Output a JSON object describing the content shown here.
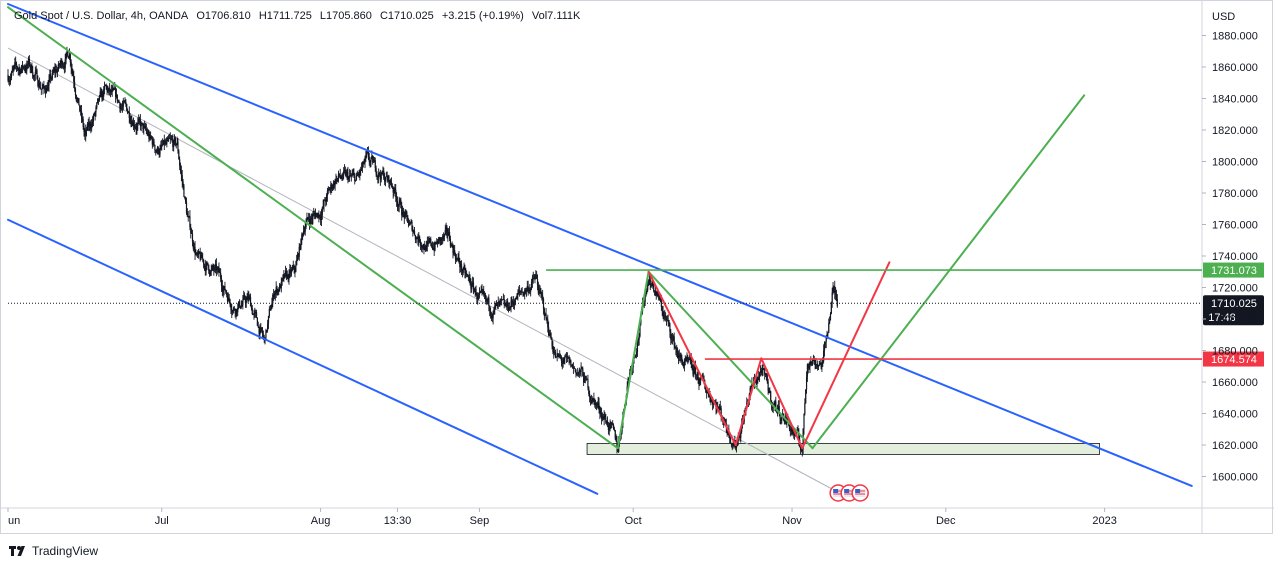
{
  "legend": {
    "symbol": "Gold Spot / U.S. Dollar, 4h, OANDA",
    "open": "O1706.810",
    "high": "H1711.725",
    "low": "L1705.860",
    "close": "C1710.025",
    "change": "+3.215 (+0.19%)",
    "volume": "Vol7.111K"
  },
  "brand": {
    "name": "TradingView"
  },
  "colors": {
    "channel": "#2962ff",
    "triangle": "#4caf50",
    "red": "#f23645",
    "candles": "#131722",
    "zone_fill": "#e3efdc",
    "price_tag": "#131722",
    "axis_text": "#131722"
  },
  "chart_data": {
    "type": "candlestick",
    "currency": "USD",
    "ylim": [
      1580,
      1900
    ],
    "xlim": [
      "2022-06-01",
      "2023-01-20"
    ],
    "y_ticks": [
      "1880.000",
      "1860.000",
      "1840.000",
      "1820.000",
      "1800.000",
      "1780.000",
      "1760.000",
      "1740.000",
      "1720.000",
      "1700.000",
      "1680.000",
      "1660.000",
      "1640.000",
      "1620.000",
      "1600.000"
    ],
    "x_ticks": [
      {
        "label": "un",
        "date": "2022-06-01"
      },
      {
        "label": "Jul",
        "date": "2022-07-01"
      },
      {
        "label": "Aug",
        "date": "2022-08-01"
      },
      {
        "label": "13:30",
        "date": "2022-08-16"
      },
      {
        "label": "Sep",
        "date": "2022-09-01"
      },
      {
        "label": "Oct",
        "date": "2022-10-01"
      },
      {
        "label": "Nov",
        "date": "2022-11-01"
      },
      {
        "label": "Dec",
        "date": "2022-12-01"
      },
      {
        "label": "2023",
        "date": "2023-01-01"
      }
    ],
    "price_path": [
      [
        "2022-06-01",
        1855
      ],
      [
        "2022-06-05",
        1862
      ],
      [
        "2022-06-08",
        1845
      ],
      [
        "2022-06-13",
        1870
      ],
      [
        "2022-06-16",
        1815
      ],
      [
        "2022-06-20",
        1845
      ],
      [
        "2022-06-25",
        1830
      ],
      [
        "2022-06-30",
        1808
      ],
      [
        "2022-07-04",
        1810
      ],
      [
        "2022-07-06",
        1765
      ],
      [
        "2022-07-08",
        1738
      ],
      [
        "2022-07-12",
        1728
      ],
      [
        "2022-07-15",
        1708
      ],
      [
        "2022-07-18",
        1712
      ],
      [
        "2022-07-21",
        1685
      ],
      [
        "2022-07-23",
        1718
      ],
      [
        "2022-07-27",
        1730
      ],
      [
        "2022-07-29",
        1762
      ],
      [
        "2022-08-01",
        1768
      ],
      [
        "2022-08-04",
        1790
      ],
      [
        "2022-08-08",
        1788
      ],
      [
        "2022-08-10",
        1800
      ],
      [
        "2022-08-12",
        1795
      ],
      [
        "2022-08-15",
        1785
      ],
      [
        "2022-08-18",
        1760
      ],
      [
        "2022-08-22",
        1745
      ],
      [
        "2022-08-26",
        1752
      ],
      [
        "2022-08-29",
        1728
      ],
      [
        "2022-08-31",
        1718
      ],
      [
        "2022-09-02",
        1708
      ],
      [
        "2022-09-06",
        1705
      ],
      [
        "2022-09-08",
        1713
      ],
      [
        "2022-09-12",
        1725
      ],
      [
        "2022-09-14",
        1700
      ],
      [
        "2022-09-16",
        1675
      ],
      [
        "2022-09-21",
        1665
      ],
      [
        "2022-09-23",
        1650
      ],
      [
        "2022-09-26",
        1635
      ],
      [
        "2022-09-28",
        1618
      ],
      [
        "2022-09-30",
        1662
      ],
      [
        "2022-10-02",
        1690
      ],
      [
        "2022-10-04",
        1728
      ],
      [
        "2022-10-06",
        1712
      ],
      [
        "2022-10-10",
        1675
      ],
      [
        "2022-10-13",
        1665
      ],
      [
        "2022-10-17",
        1648
      ],
      [
        "2022-10-21",
        1620
      ],
      [
        "2022-10-24",
        1655
      ],
      [
        "2022-10-26",
        1668
      ],
      [
        "2022-10-28",
        1648
      ],
      [
        "2022-10-31",
        1635
      ],
      [
        "2022-11-03",
        1618
      ],
      [
        "2022-11-04",
        1675
      ],
      [
        "2022-11-07",
        1672
      ],
      [
        "2022-11-09",
        1718
      ],
      [
        "2022-11-10",
        1710
      ]
    ],
    "ohlc_last": {
      "open": 1706.81,
      "high": 1711.725,
      "low": 1705.86,
      "close": 1710.025
    },
    "last_price_label": "1710.025",
    "countdown_label": "17:48",
    "levels": [
      {
        "price": 1731.073,
        "label": "1731.073",
        "color": "#4caf50"
      },
      {
        "price": 1674.574,
        "label": "1674.574",
        "color": "#f23645"
      }
    ],
    "drawings": {
      "blue_channel": [
        [
          [
            "2022-06-01",
            1900
          ],
          [
            "2023-01-18",
            1594
          ]
        ],
        [
          [
            "2022-06-01",
            1763
          ],
          [
            "2022-09-24",
            1589
          ]
        ]
      ],
      "green_triangle": [
        [
          [
            "2022-06-01",
            1898
          ],
          [
            "2022-09-28",
            1618
          ]
        ],
        [
          [
            "2022-09-28",
            1618
          ],
          [
            "2022-10-04",
            1730
          ]
        ],
        [
          [
            "2022-10-04",
            1730
          ],
          [
            "2022-11-05",
            1618
          ]
        ],
        [
          [
            "2022-11-05",
            1618
          ],
          [
            "2022-12-28",
            1842
          ]
        ]
      ],
      "red_w_pattern": [
        [
          [
            "2022-10-04",
            1730
          ],
          [
            "2022-10-21",
            1620
          ]
        ],
        [
          [
            "2022-10-21",
            1620
          ],
          [
            "2022-10-26",
            1675
          ]
        ],
        [
          [
            "2022-10-26",
            1675
          ],
          [
            "2022-11-03",
            1618
          ]
        ],
        [
          [
            "2022-11-03",
            1618
          ],
          [
            "2022-11-20",
            1736
          ]
        ]
      ],
      "gray_midline": [
        [
          "2022-06-01",
          1872
        ],
        [
          "2022-11-10",
          1590
        ]
      ],
      "support_zone": {
        "x_from": "2022-09-22",
        "x_to": "2022-12-31",
        "y_from": 1614,
        "y_to": 1621
      }
    }
  }
}
